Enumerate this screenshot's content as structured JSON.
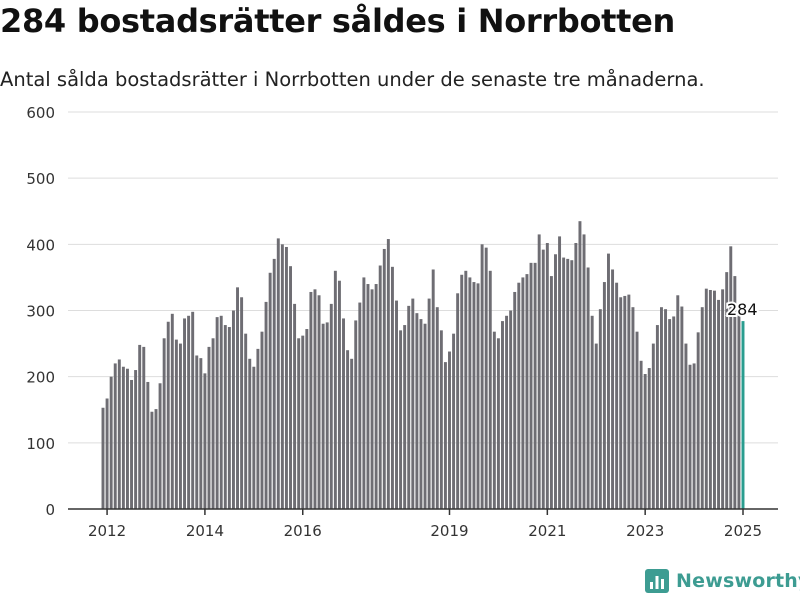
{
  "header": {
    "title": "284 bostadsrätter såldes i Norrbotten",
    "subtitle": "Antal sålda bostadsrätter i Norrbotten under de senaste tre månaderna."
  },
  "brand": {
    "name": "Newsworthy",
    "icon": "newsworthy-logo-icon"
  },
  "colors": {
    "bar": "#6e6d73",
    "highlight": "#2a9d8f",
    "grid": "#dddddd",
    "axis": "#333333",
    "brand": "#3d9c92"
  },
  "chart_data": {
    "type": "bar",
    "title": "284 bostadsrätter såldes i Norrbotten",
    "subtitle": "Antal sålda bostadsrätter i Norrbotten under de senaste tre månaderna.",
    "xlabel": "",
    "ylabel": "",
    "ylim": [
      0,
      600
    ],
    "yticks": [
      "0",
      "100",
      "200",
      "300",
      "400",
      "500",
      "600"
    ],
    "xticks": [
      {
        "label": "2012",
        "date": "2012-01"
      },
      {
        "label": "2014",
        "date": "2014-01"
      },
      {
        "label": "2016",
        "date": "2016-01"
      },
      {
        "label": "2019",
        "date": "2019-01"
      },
      {
        "label": "2021",
        "date": "2021-01"
      },
      {
        "label": "2023",
        "date": "2023-01"
      },
      {
        "label": "2025",
        "date": "2025-01"
      }
    ],
    "grid": true,
    "start_month": "2011-12",
    "end_month": "2025-01",
    "highlight_label": "284",
    "values": [
      153,
      167,
      200,
      220,
      226,
      215,
      212,
      195,
      210,
      248,
      245,
      192,
      147,
      151,
      190,
      258,
      283,
      295,
      256,
      250,
      288,
      292,
      298,
      232,
      228,
      205,
      245,
      258,
      290,
      292,
      278,
      275,
      300,
      335,
      320,
      265,
      227,
      215,
      242,
      268,
      313,
      357,
      378,
      409,
      400,
      396,
      367,
      310,
      258,
      262,
      272,
      328,
      332,
      323,
      280,
      282,
      310,
      360,
      345,
      288,
      240,
      227,
      285,
      312,
      350,
      340,
      332,
      340,
      368,
      393,
      408,
      366,
      315,
      270,
      278,
      307,
      318,
      296,
      287,
      280,
      318,
      362,
      305,
      270,
      222,
      238,
      265,
      326,
      354,
      360,
      350,
      343,
      341,
      400,
      395,
      360,
      268,
      258,
      284,
      292,
      300,
      328,
      342,
      350,
      355,
      372,
      372,
      415,
      392,
      402,
      352,
      385,
      412,
      380,
      378,
      376,
      402,
      435,
      415,
      365,
      292,
      250,
      302,
      343,
      386,
      362,
      342,
      320,
      322,
      324,
      305,
      268,
      224,
      204,
      213,
      250,
      278,
      305,
      302,
      287,
      291,
      323,
      306,
      250,
      218,
      220,
      267,
      305,
      333,
      331,
      330,
      316,
      332,
      358,
      397,
      352,
      309,
      284
    ]
  }
}
